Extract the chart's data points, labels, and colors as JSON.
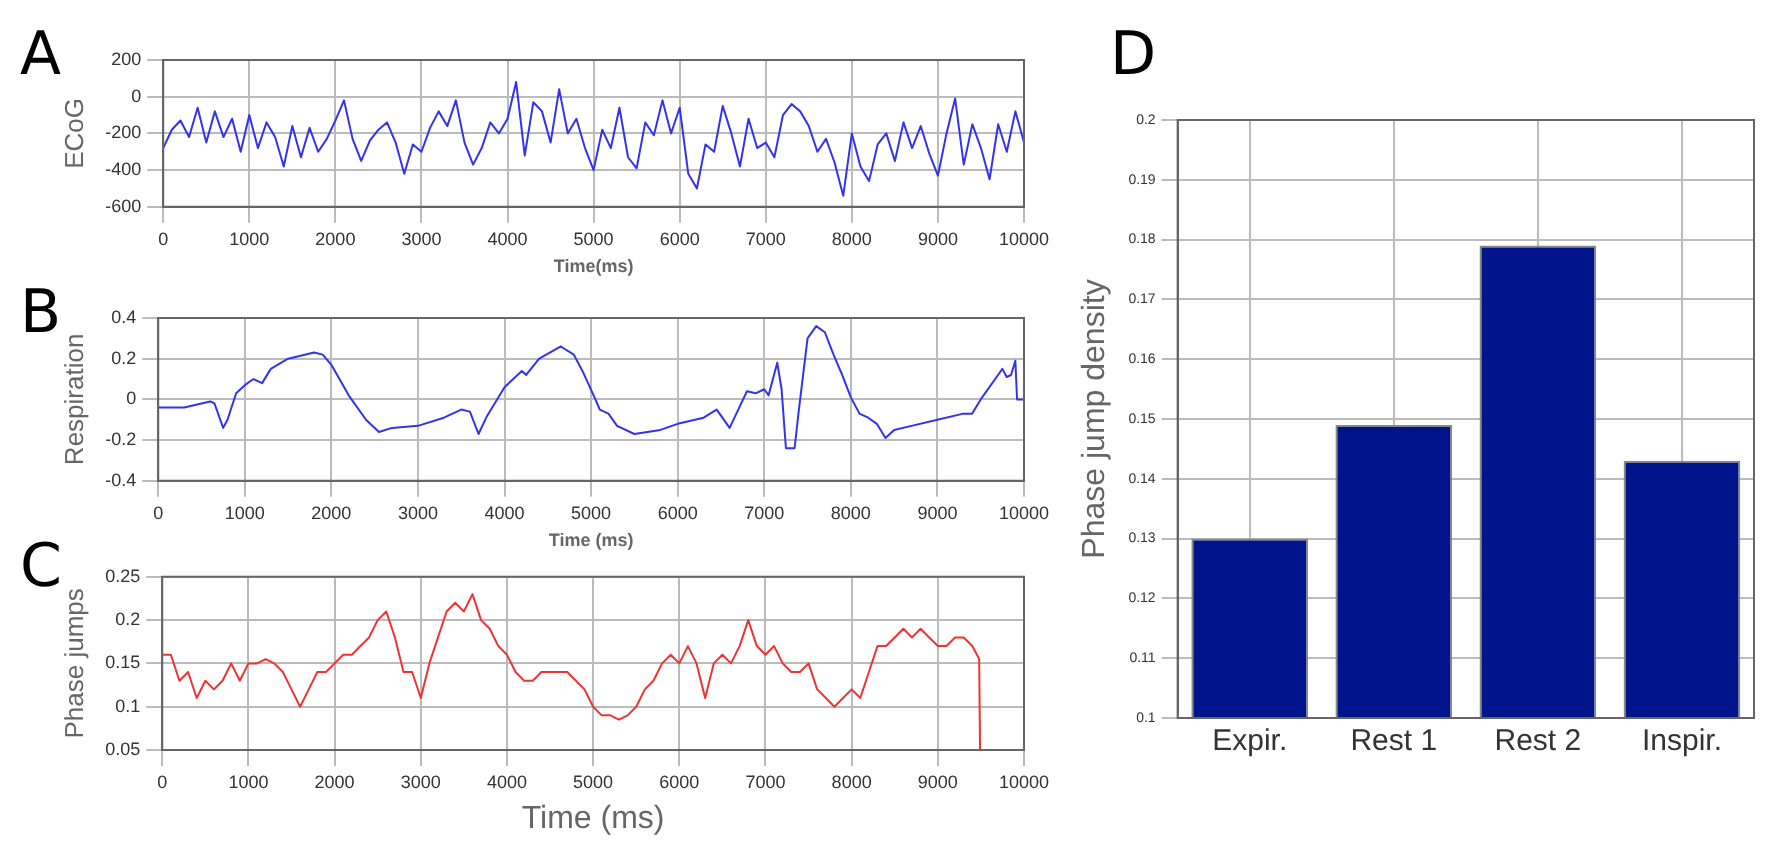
{
  "chart_data": [
    {
      "type": "line",
      "title": "A",
      "xlabel": "Time(ms)",
      "ylabel": "ECoG",
      "xlim": [
        0,
        10000
      ],
      "xticks": [
        0,
        1000,
        2000,
        3000,
        4000,
        5000,
        6000,
        7000,
        8000,
        9000,
        10000
      ],
      "ylim": [
        -600,
        200
      ],
      "yticks": [
        -600,
        -400,
        -200,
        0,
        200
      ],
      "grid": true,
      "x": [
        0,
        100,
        200,
        300,
        400,
        500,
        600,
        700,
        800,
        900,
        1000,
        1100,
        1200,
        1300,
        1400,
        1500,
        1600,
        1700,
        1800,
        1900,
        2000,
        2100,
        2200,
        2300,
        2400,
        2500,
        2600,
        2700,
        2800,
        2900,
        3000,
        3100,
        3200,
        3300,
        3400,
        3500,
        3600,
        3700,
        3800,
        3900,
        4000,
        4100,
        4200,
        4300,
        4400,
        4500,
        4600,
        4700,
        4800,
        4900,
        5000,
        5100,
        5200,
        5300,
        5400,
        5500,
        5600,
        5700,
        5800,
        5900,
        6000,
        6100,
        6200,
        6300,
        6400,
        6500,
        6600,
        6700,
        6800,
        6900,
        7000,
        7100,
        7200,
        7300,
        7400,
        7500,
        7600,
        7700,
        7800,
        7900,
        8000,
        8100,
        8200,
        8300,
        8400,
        8500,
        8600,
        8700,
        8800,
        8900,
        9000,
        9100,
        9200,
        9300,
        9400,
        9500,
        9600,
        9700,
        9800,
        9900,
        10000
      ],
      "series": [
        {
          "color": "#3333ee",
          "values": [
            -280,
            -180,
            -130,
            -220,
            -60,
            -250,
            -80,
            -220,
            -120,
            -300,
            -100,
            -280,
            -140,
            -220,
            -380,
            -160,
            -330,
            -170,
            -300,
            -230,
            -130,
            -20,
            -230,
            -350,
            -240,
            -180,
            -140,
            -250,
            -420,
            -260,
            -300,
            -170,
            -80,
            -160,
            -20,
            -250,
            -370,
            -280,
            -140,
            -200,
            -120,
            80,
            -320,
            -30,
            -80,
            -250,
            40,
            -200,
            -120,
            -280,
            -400,
            -180,
            -280,
            -60,
            -330,
            -390,
            -140,
            -210,
            -20,
            -200,
            -60,
            -420,
            -500,
            -260,
            -300,
            -50,
            -200,
            -380,
            -120,
            -280,
            -250,
            -330,
            -100,
            -40,
            -80,
            -160,
            -300,
            -230,
            -360,
            -540,
            -200,
            -380,
            -460,
            -260,
            -200,
            -350,
            -140,
            -280,
            -160,
            -310,
            -430,
            -200,
            -10,
            -370,
            -150,
            -280,
            -450,
            -150,
            -300,
            -80,
            -250
          ]
        }
      ]
    },
    {
      "type": "line",
      "title": "B",
      "xlabel": "Time (ms)",
      "ylabel": "Respiration",
      "xlim": [
        0,
        10000
      ],
      "xticks": [
        0,
        1000,
        2000,
        3000,
        4000,
        5000,
        6000,
        7000,
        8000,
        9000,
        10000
      ],
      "ylim": [
        -0.4,
        0.4
      ],
      "yticks": [
        -0.4,
        -0.2,
        0,
        0.2,
        0.4
      ],
      "grid": true,
      "x": [
        0,
        300,
        600,
        650,
        750,
        800,
        900,
        1000,
        1100,
        1200,
        1300,
        1500,
        1800,
        1900,
        2000,
        2200,
        2400,
        2550,
        2700,
        3000,
        3300,
        3500,
        3600,
        3700,
        3800,
        4000,
        4200,
        4250,
        4400,
        4650,
        4800,
        4900,
        5050,
        5100,
        5200,
        5300,
        5500,
        5800,
        6000,
        6300,
        6450,
        6500,
        6600,
        6700,
        6800,
        6900,
        7000,
        7050,
        7150,
        7200,
        7250,
        7350,
        7400,
        7500,
        7600,
        7700,
        7800,
        7900,
        8000,
        8100,
        8200,
        8300,
        8400,
        8500,
        8700,
        9000,
        9300,
        9400,
        9500,
        9700,
        9750,
        9800,
        9850,
        9900,
        9920,
        10000
      ],
      "series": [
        {
          "color": "#3333ee",
          "values": [
            -0.04,
            -0.04,
            -0.01,
            -0.02,
            -0.14,
            -0.1,
            0.03,
            0.07,
            0.1,
            0.08,
            0.15,
            0.2,
            0.23,
            0.22,
            0.17,
            0.02,
            -0.1,
            -0.16,
            -0.14,
            -0.13,
            -0.09,
            -0.05,
            -0.06,
            -0.17,
            -0.08,
            0.06,
            0.14,
            0.12,
            0.2,
            0.26,
            0.22,
            0.14,
            0,
            -0.05,
            -0.07,
            -0.13,
            -0.17,
            -0.15,
            -0.12,
            -0.09,
            -0.05,
            -0.08,
            -0.14,
            -0.05,
            0.04,
            0.03,
            0.05,
            0.02,
            0.18,
            0.05,
            -0.24,
            -0.24,
            -0.05,
            0.3,
            0.36,
            0.33,
            0.22,
            0.12,
            0.01,
            -0.07,
            -0.09,
            -0.12,
            -0.19,
            -0.15,
            -0.13,
            -0.1,
            -0.07,
            -0.07,
            0,
            0.12,
            0.15,
            0.11,
            0.12,
            0.19,
            0,
            0
          ]
        }
      ]
    },
    {
      "type": "line",
      "title": "C",
      "xlabel": "Time (ms)",
      "ylabel": "Phase jumps",
      "xlim": [
        0,
        10000
      ],
      "xticks": [
        0,
        1000,
        2000,
        3000,
        4000,
        5000,
        6000,
        7000,
        8000,
        9000,
        10000
      ],
      "ylim": [
        0.05,
        0.25
      ],
      "yticks": [
        0.05,
        0.1,
        0.15,
        0.2,
        0.25
      ],
      "grid": true,
      "x": [
        0,
        100,
        200,
        300,
        400,
        500,
        600,
        700,
        800,
        900,
        1000,
        1100,
        1200,
        1300,
        1400,
        1500,
        1600,
        1700,
        1800,
        1900,
        2000,
        2100,
        2200,
        2300,
        2400,
        2500,
        2600,
        2700,
        2800,
        2900,
        3000,
        3100,
        3200,
        3300,
        3400,
        3500,
        3600,
        3700,
        3800,
        3900,
        4000,
        4100,
        4200,
        4300,
        4400,
        4500,
        4600,
        4700,
        4800,
        4900,
        5000,
        5100,
        5200,
        5300,
        5400,
        5500,
        5600,
        5700,
        5800,
        5900,
        6000,
        6100,
        6200,
        6300,
        6400,
        6500,
        6600,
        6700,
        6800,
        6900,
        7000,
        7100,
        7200,
        7300,
        7400,
        7500,
        7600,
        7700,
        7800,
        7900,
        8000,
        8100,
        8200,
        8300,
        8400,
        8500,
        8600,
        8700,
        8800,
        8900,
        9000,
        9100,
        9200,
        9300,
        9400,
        9480,
        9490
      ],
      "series": [
        {
          "color": "#ee3333",
          "values": [
            0.16,
            0.16,
            0.13,
            0.14,
            0.11,
            0.13,
            0.12,
            0.13,
            0.15,
            0.13,
            0.15,
            0.15,
            0.155,
            0.15,
            0.14,
            0.12,
            0.1,
            0.12,
            0.14,
            0.14,
            0.15,
            0.16,
            0.16,
            0.17,
            0.18,
            0.2,
            0.21,
            0.18,
            0.14,
            0.14,
            0.11,
            0.15,
            0.18,
            0.21,
            0.22,
            0.21,
            0.23,
            0.2,
            0.19,
            0.17,
            0.16,
            0.14,
            0.13,
            0.13,
            0.14,
            0.14,
            0.14,
            0.14,
            0.13,
            0.12,
            0.1,
            0.09,
            0.09,
            0.085,
            0.09,
            0.1,
            0.12,
            0.13,
            0.15,
            0.16,
            0.15,
            0.17,
            0.15,
            0.11,
            0.15,
            0.16,
            0.15,
            0.17,
            0.2,
            0.17,
            0.16,
            0.17,
            0.15,
            0.14,
            0.14,
            0.15,
            0.12,
            0.11,
            0.1,
            0.11,
            0.12,
            0.11,
            0.14,
            0.17,
            0.17,
            0.18,
            0.19,
            0.18,
            0.19,
            0.18,
            0.17,
            0.17,
            0.18,
            0.18,
            0.17,
            0.155,
            0.05
          ]
        }
      ]
    },
    {
      "type": "bar",
      "title": "D",
      "ylabel": "Phase jump density",
      "categories": [
        "Expir.",
        "Rest 1",
        "Rest 2",
        "Inspir."
      ],
      "values": [
        0.13,
        0.149,
        0.179,
        0.143
      ],
      "color": "#00148c",
      "ylim": [
        0.1,
        0.2
      ],
      "yticks": [
        0.1,
        0.11,
        0.12,
        0.13,
        0.14,
        0.15,
        0.16,
        0.17,
        0.18,
        0.19,
        0.2
      ],
      "grid": true
    }
  ]
}
